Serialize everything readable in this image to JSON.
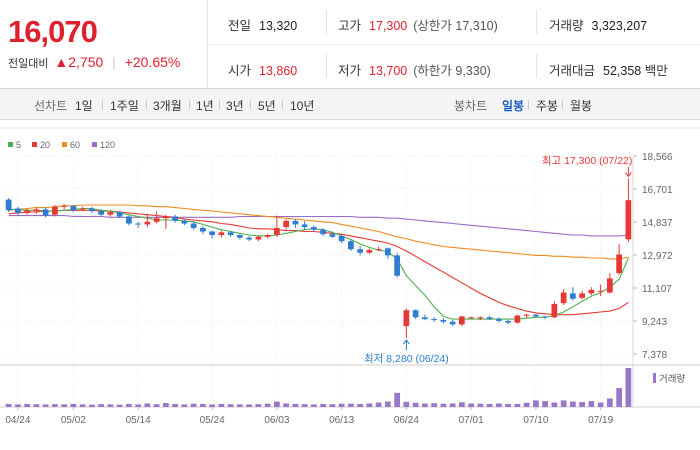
{
  "summary": {
    "current_price": "16,070",
    "change_label": "전일대비",
    "change_arrow": "▲",
    "change_value": "2,750",
    "change_rate": "+20.65%"
  },
  "info": {
    "prev_close": {
      "label": "전일",
      "value": "13,320"
    },
    "open": {
      "label": "시가",
      "value": "13,860"
    },
    "high": {
      "label": "고가",
      "value": "17,300",
      "sub": "(상한가 17,310)"
    },
    "low": {
      "label": "저가",
      "value": "13,700",
      "sub": "(하한가 9,330)"
    },
    "volume": {
      "label": "거래량",
      "value": "3,323,207"
    },
    "amount": {
      "label": "거래대금",
      "value": "52,358",
      "unit": "백만"
    }
  },
  "toolbar": {
    "line_chart_label": "선차트",
    "line_periods": [
      "1일",
      "1주일",
      "3개월",
      "1년",
      "3년",
      "5년",
      "10년"
    ],
    "candle_chart_label": "봉차트",
    "candle_periods": [
      "일봉",
      "주봉",
      "월봉"
    ],
    "active_candle": "일봉"
  },
  "chart_data": {
    "type": "candlestick",
    "legend": [
      {
        "name": "5",
        "color": "#4caf50"
      },
      {
        "name": "20",
        "color": "#e53935"
      },
      {
        "name": "60",
        "color": "#f08c1e"
      },
      {
        "name": "120",
        "color": "#9c6bc8"
      }
    ],
    "y_ticks": [
      "18,566",
      "16,701",
      "14,837",
      "12,972",
      "11,107",
      "9,243",
      "7,378"
    ],
    "ylim": [
      7378,
      18566
    ],
    "x_ticks": [
      {
        "label": "04/24",
        "i": 1
      },
      {
        "label": "05/02",
        "i": 7
      },
      {
        "label": "05/14",
        "i": 14
      },
      {
        "label": "05/24",
        "i": 22
      },
      {
        "label": "06/03",
        "i": 29
      },
      {
        "label": "06/13",
        "i": 36
      },
      {
        "label": "06/24",
        "i": 43
      },
      {
        "label": "07/01",
        "i": 50
      },
      {
        "label": "07/10",
        "i": 57
      },
      {
        "label": "07/19",
        "i": 64
      }
    ],
    "high_annotation": "최고 17,300 (07/22)",
    "low_annotation": "최저 8,280 (06/24)",
    "volume_label": "거래량",
    "candles": [
      [
        16100,
        15500,
        16200,
        15400
      ],
      [
        15600,
        15350,
        15700,
        15200
      ],
      [
        15350,
        15500,
        15600,
        15250
      ],
      [
        15450,
        15550,
        15650,
        15300
      ],
      [
        15550,
        15200,
        15650,
        15100
      ],
      [
        15250,
        15700,
        15800,
        15150
      ],
      [
        15700,
        15750,
        15850,
        15550
      ],
      [
        15750,
        15500,
        15800,
        15400
      ],
      [
        15550,
        15600,
        15700,
        15450
      ],
      [
        15600,
        15450,
        15700,
        15350
      ],
      [
        15450,
        15250,
        15550,
        15150
      ],
      [
        15250,
        15400,
        15500,
        15150
      ],
      [
        15400,
        15150,
        15450,
        15050
      ],
      [
        15150,
        14750,
        15200,
        14650
      ],
      [
        14750,
        14700,
        14850,
        14500
      ],
      [
        14700,
        14850,
        15300,
        14550
      ],
      [
        14850,
        15050,
        15450,
        14750
      ],
      [
        15050,
        15150,
        15250,
        14450
      ],
      [
        15150,
        14900,
        15250,
        14800
      ],
      [
        14900,
        14750,
        15000,
        14650
      ],
      [
        14750,
        14500,
        14850,
        14400
      ],
      [
        14500,
        14300,
        14600,
        14150
      ],
      [
        14300,
        14100,
        14350,
        13900
      ],
      [
        14100,
        14250,
        14350,
        13950
      ],
      [
        14250,
        14100,
        14350,
        14000
      ],
      [
        14100,
        13950,
        14150,
        13850
      ],
      [
        13950,
        13850,
        14050,
        13750
      ],
      [
        13850,
        14000,
        14100,
        13750
      ],
      [
        14000,
        14100,
        14150,
        13900
      ],
      [
        14100,
        14500,
        15200,
        14000
      ],
      [
        14550,
        14900,
        15000,
        14400
      ],
      [
        14900,
        14700,
        15000,
        14500
      ],
      [
        14700,
        14550,
        14900,
        14400
      ],
      [
        14550,
        14400,
        14650,
        14300
      ],
      [
        14400,
        14150,
        14500,
        14050
      ],
      [
        14150,
        14000,
        14300,
        13950
      ],
      [
        14050,
        13750,
        14150,
        13650
      ],
      [
        13750,
        13300,
        13850,
        13200
      ],
      [
        13300,
        13100,
        13500,
        12950
      ],
      [
        13100,
        13250,
        13350,
        13050
      ],
      [
        13250,
        13300,
        13450,
        13200
      ],
      [
        13350,
        12950,
        13400,
        12750
      ],
      [
        12950,
        11800,
        13100,
        11700
      ],
      [
        8950,
        9850,
        9950,
        8280
      ],
      [
        9850,
        9450,
        9900,
        9350
      ],
      [
        9450,
        9350,
        9600,
        9300
      ],
      [
        9350,
        9300,
        9450,
        9200
      ],
      [
        9300,
        9200,
        9400,
        9100
      ],
      [
        9200,
        9050,
        9300,
        8950
      ],
      [
        9050,
        9500,
        9550,
        8950
      ],
      [
        9450,
        9450,
        9500,
        9350
      ],
      [
        9400,
        9450,
        9500,
        9300
      ],
      [
        9450,
        9350,
        9550,
        9300
      ],
      [
        9350,
        9250,
        9450,
        9150
      ],
      [
        9250,
        9150,
        9300,
        9050
      ],
      [
        9150,
        9550,
        9600,
        9100
      ],
      [
        9550,
        9600,
        9650,
        9400
      ],
      [
        9600,
        9500,
        9650,
        9450
      ],
      [
        9500,
        9450,
        9550,
        9350
      ],
      [
        9450,
        10200,
        10350,
        9400
      ],
      [
        10250,
        10850,
        11050,
        10150
      ],
      [
        10800,
        10500,
        11150,
        10400
      ],
      [
        10550,
        10800,
        10950,
        10450
      ],
      [
        10800,
        11000,
        11150,
        10700
      ],
      [
        10950,
        10950,
        11300,
        10650
      ],
      [
        10850,
        11650,
        11950,
        10800
      ],
      [
        11950,
        13000,
        13600,
        11850
      ],
      [
        13860,
        16070,
        17300,
        13700
      ]
    ],
    "ma5": [
      15550,
      15550,
      15500,
      15500,
      15450,
      15450,
      15500,
      15550,
      15600,
      15600,
      15500,
      15450,
      15350,
      15250,
      15150,
      15050,
      14950,
      14950,
      14950,
      14900,
      14850,
      14700,
      14550,
      14400,
      14300,
      14200,
      14100,
      14050,
      14050,
      14100,
      14200,
      14300,
      14400,
      14450,
      14400,
      14250,
      14050,
      13850,
      13600,
      13400,
      13250,
      13150,
      12750,
      11800,
      11250,
      10700,
      10050,
      9500,
      9350,
      9350,
      9350,
      9350,
      9350,
      9350,
      9350,
      9350,
      9400,
      9450,
      9450,
      9550,
      9750,
      10050,
      10350,
      10650,
      10850,
      11150,
      11600,
      12800
    ],
    "ma20": [
      15300,
      15350,
      15400,
      15400,
      15450,
      15450,
      15500,
      15500,
      15500,
      15500,
      15450,
      15450,
      15400,
      15350,
      15300,
      15250,
      15200,
      15150,
      15100,
      15000,
      14950,
      14900,
      14850,
      14750,
      14700,
      14600,
      14500,
      14450,
      14450,
      14400,
      14350,
      14350,
      14300,
      14300,
      14250,
      14200,
      14150,
      14050,
      13950,
      13850,
      13750,
      13650,
      13450,
      13200,
      12900,
      12600,
      12300,
      12000,
      11700,
      11400,
      11100,
      10800,
      10550,
      10300,
      10100,
      9950,
      9800,
      9700,
      9650,
      9600,
      9600,
      9600,
      9650,
      9700,
      9750,
      9800,
      9950,
      10300
    ],
    "ma60": [
      15500,
      15550,
      15600,
      15650,
      15650,
      15700,
      15750,
      15750,
      15800,
      15800,
      15800,
      15800,
      15800,
      15800,
      15750,
      15750,
      15700,
      15700,
      15650,
      15600,
      15550,
      15500,
      15450,
      15400,
      15350,
      15300,
      15250,
      15200,
      15150,
      15100,
      15050,
      15000,
      14950,
      14900,
      14850,
      14800,
      14700,
      14600,
      14500,
      14400,
      14300,
      14150,
      14000,
      13900,
      13750,
      13650,
      13550,
      13450,
      13400,
      13350,
      13300,
      13250,
      13200,
      13150,
      13100,
      13050,
      13000,
      12950,
      12950,
      12900,
      12900,
      12850,
      12850,
      12800,
      12800,
      12750,
      12750,
      12850
    ],
    "ma120": [
      15200,
      15200,
      15200,
      15200,
      15200,
      15200,
      15200,
      15150,
      15150,
      15150,
      15150,
      15100,
      15100,
      15100,
      15100,
      15100,
      15100,
      15100,
      15100,
      15100,
      15100,
      15100,
      15100,
      15100,
      15100,
      15150,
      15150,
      15150,
      15150,
      15150,
      15150,
      15150,
      15150,
      15150,
      15150,
      15150,
      15150,
      15150,
      15100,
      15100,
      15100,
      15050,
      15050,
      15000,
      14950,
      14900,
      14850,
      14800,
      14750,
      14700,
      14650,
      14600,
      14550,
      14500,
      14450,
      14400,
      14350,
      14300,
      14250,
      14200,
      14150,
      14100,
      14100,
      14050,
      14050,
      14050,
      14050,
      14100
    ],
    "volume": [
      26,
      22,
      26,
      24,
      22,
      24,
      22,
      26,
      22,
      20,
      24,
      22,
      20,
      26,
      22,
      30,
      24,
      34,
      26,
      22,
      28,
      26,
      22,
      26,
      24,
      22,
      22,
      24,
      28,
      46,
      30,
      26,
      24,
      22,
      26,
      24,
      28,
      28,
      26,
      30,
      38,
      46,
      120,
      44,
      36,
      30,
      32,
      28,
      30,
      40,
      30,
      28,
      26,
      30,
      26,
      26,
      36,
      56,
      50,
      38,
      56,
      46,
      42,
      50,
      38,
      72,
      160,
      330
    ]
  }
}
